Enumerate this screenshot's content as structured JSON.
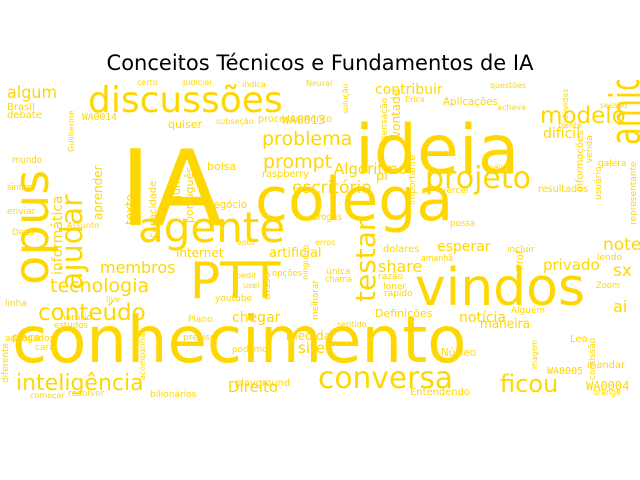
{
  "title": "Conceitos Técnicos e Fundamentos de IA",
  "colors": {
    "word": "#FFD700",
    "background": "#ffffff",
    "title": "#000000"
  },
  "words": [
    "IA",
    "conhecimento",
    "ideia",
    "colega",
    "PTT",
    "opus",
    "vindos",
    "agente",
    "discussões",
    "amigo",
    "projeto",
    "ajudar",
    "testar",
    "conversa",
    "inteligência",
    "tecnologia",
    "conteúdo",
    "modelo",
    "ficou",
    "problema",
    "prompt",
    "escritório",
    "membros",
    "share",
    "note",
    "artificial",
    "privado",
    "Direito",
    "internet",
    "chegar",
    "site",
    "notícia",
    "sx",
    "ai",
    "contribuir",
    "algum",
    "informática",
    "Algoritmo",
    "pi",
    "esperar",
    "maneira",
    "medida",
    "dolares",
    "Definições",
    "WA0013",
    "WA0014",
    "WA0004",
    "WA0005",
    "Aplicações",
    "difícil",
    "mundo",
    "Brasil",
    "debate",
    "texto",
    "aprender",
    "capacidade",
    "juntos",
    "português",
    "quiser",
    "bolsa",
    "negócio",
    "raspberry",
    "processamento",
    "drogas",
    "vontade",
    "sensação",
    "importante",
    "resultados",
    "informações",
    "usuário",
    "galera",
    "representante",
    "Prof",
    "Leo",
    "Zoom",
    "lendo",
    "comissão",
    "mandar",
    "orange",
    "Núcleo",
    "Alguém",
    "rápido",
    "Ioner",
    "razão",
    "amanhã",
    "única",
    "chama",
    "melhorar",
    "disso",
    "youtube",
    "opções",
    "podemos",
    "preciso",
    "Matemática",
    "Entendendo",
    "playground",
    "bilionários",
    "resolver",
    "começar",
    "diferente",
    "advogados",
    "estudos",
    "placa",
    "cara",
    "horário",
    "linha",
    "enviar",
    "sintam",
    "Deus",
    "Assunto",
    "Plano",
    "live",
    "pedir",
    "usei",
    "voto",
    "vercel",
    "possa",
    "incluir",
    "análise",
    "frente",
    "venda",
    "certo",
    "Judicial",
    "indica",
    "Neural",
    "questões",
    "Érica",
    "solução",
    "subseção",
    "Guilherme",
    "achava",
    "sessão",
    "dúvidas",
    "imagem",
    "acompanhar",
    "ninguém",
    "erros",
    "sentido"
  ]
}
